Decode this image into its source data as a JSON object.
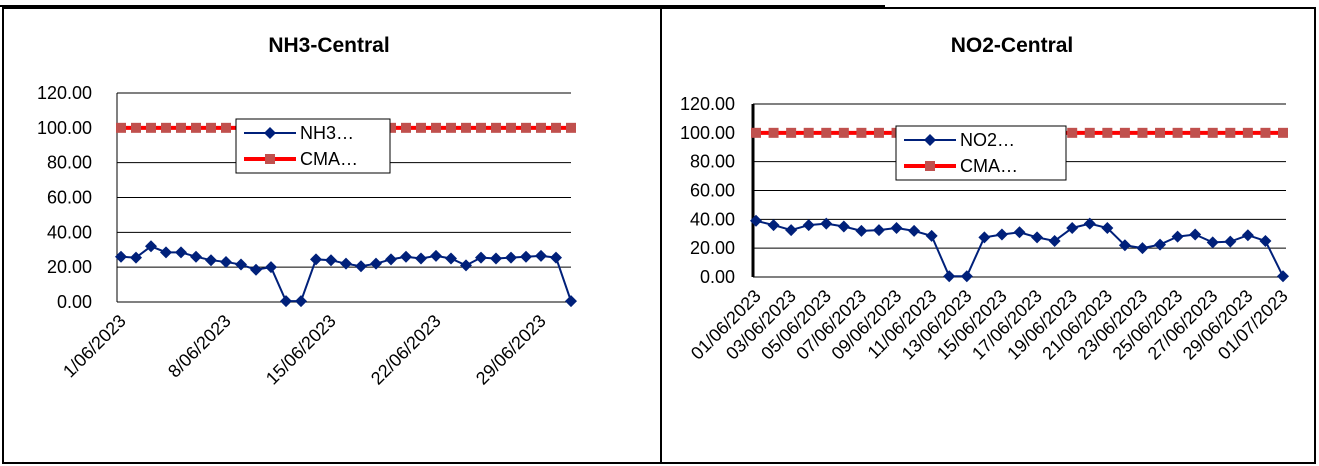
{
  "chart_data": [
    {
      "type": "line",
      "title": "NH3-Central",
      "xlabel": "",
      "ylabel": "",
      "ylim": [
        0,
        120
      ],
      "yticks": [
        "0.00",
        "20.00",
        "40.00",
        "60.00",
        "80.00",
        "100.00",
        "120.00"
      ],
      "x_tick_labels": [
        "1/06/2023",
        "8/06/2023",
        "15/06/2023",
        "22/06/2023",
        "29/06/2023"
      ],
      "grid": true,
      "legend_position": "top-center",
      "series": [
        {
          "name": "NH3…",
          "color": "#00207a",
          "marker": "diamond",
          "values": [
            26,
            25.5,
            32,
            28.5,
            28.5,
            26,
            24,
            23,
            21.5,
            18.5,
            20,
            0.5,
            0.5,
            24.5,
            24,
            22,
            20.5,
            22,
            24.5,
            26,
            25,
            26.5,
            25,
            21,
            25.5,
            25,
            25.5,
            26,
            26.5,
            25.5,
            0.5
          ]
        },
        {
          "name": "CMA…",
          "color": "#ff0000",
          "marker": "square",
          "marker_color": "#c0504d",
          "values": [
            100,
            100,
            100,
            100,
            100,
            100,
            100,
            100,
            100,
            100,
            100,
            100,
            100,
            100,
            100,
            100,
            100,
            100,
            100,
            100,
            100,
            100,
            100,
            100,
            100,
            100,
            100,
            100,
            100,
            100,
            100
          ]
        }
      ]
    },
    {
      "type": "line",
      "title": "NO2-Central",
      "xlabel": "",
      "ylabel": "",
      "ylim": [
        0,
        120
      ],
      "yticks": [
        "0.00",
        "20.00",
        "40.00",
        "60.00",
        "80.00",
        "100.00",
        "120.00"
      ],
      "x_tick_labels": [
        "01/06/2023",
        "03/06/2023",
        "05/06/2023",
        "07/06/2023",
        "09/06/2023",
        "11/06/2023",
        "13/06/2023",
        "15/06/2023",
        "17/06/2023",
        "19/06/2023",
        "21/06/2023",
        "23/06/2023",
        "25/06/2023",
        "27/06/2023",
        "29/06/2023",
        "01/07/2023"
      ],
      "grid": true,
      "legend_position": "top-center",
      "series": [
        {
          "name": "NO2…",
          "color": "#00207a",
          "marker": "diamond",
          "values": [
            39,
            36,
            32.5,
            36,
            37,
            35,
            32,
            32.5,
            34,
            32,
            28.5,
            0.5,
            0.5,
            27.5,
            29.5,
            31,
            27.5,
            25,
            34,
            37,
            34,
            22,
            20,
            22.5,
            28,
            29.5,
            24,
            24.5,
            29,
            25,
            0.5
          ]
        },
        {
          "name": "CMA…",
          "color": "#ff0000",
          "marker": "square",
          "marker_color": "#c0504d",
          "values": [
            100,
            100,
            100,
            100,
            100,
            100,
            100,
            100,
            100,
            100,
            100,
            100,
            100,
            100,
            100,
            100,
            100,
            100,
            100,
            100,
            100,
            100,
            100,
            100,
            100,
            100,
            100,
            100,
            100,
            100,
            100
          ]
        }
      ]
    }
  ]
}
